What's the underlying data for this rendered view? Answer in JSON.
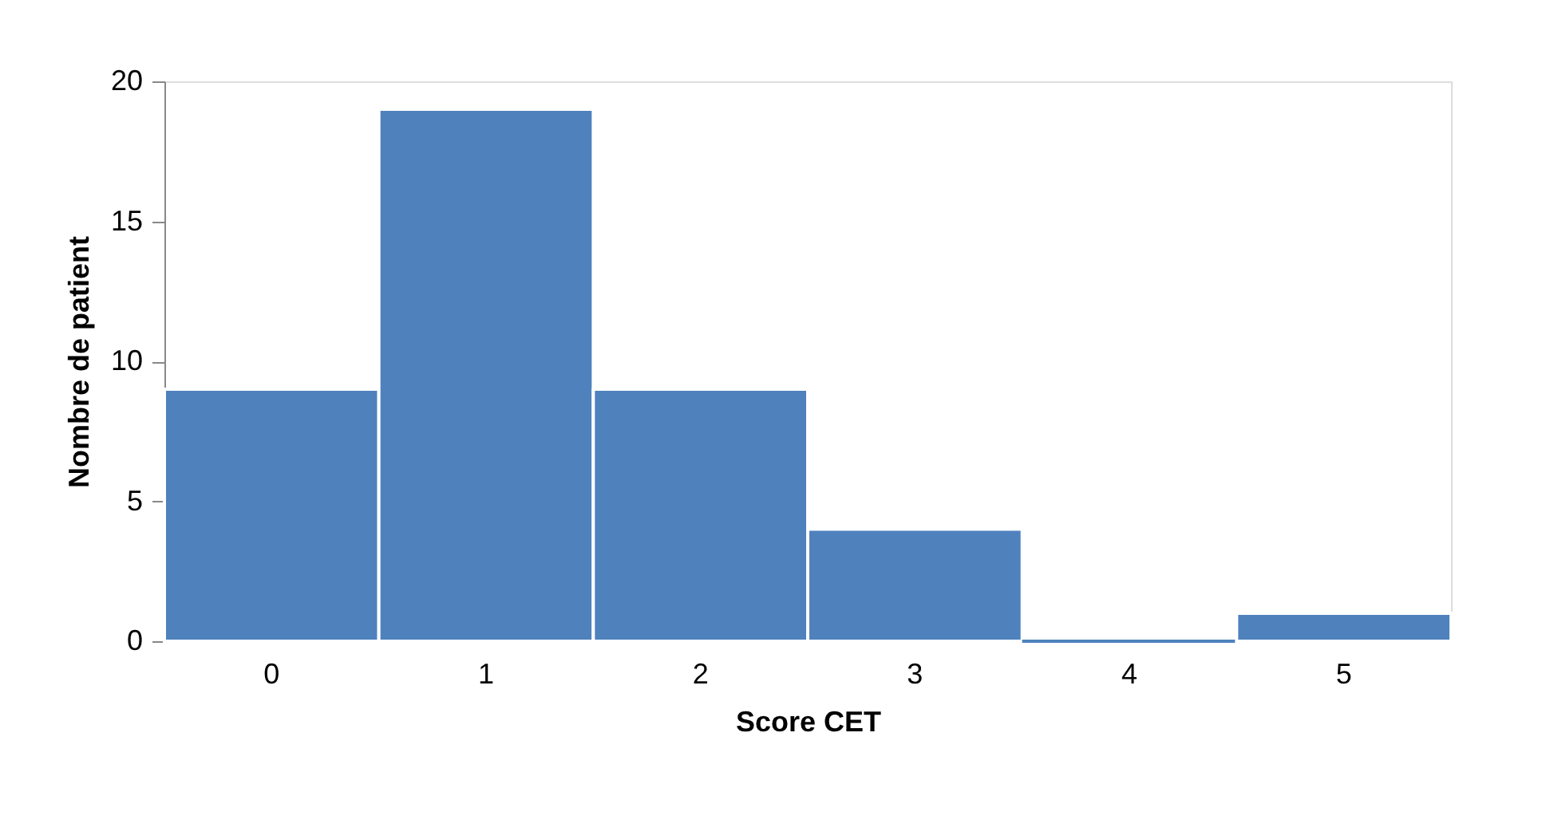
{
  "chart_data": {
    "type": "bar",
    "xlabel": "Score CET",
    "ylabel": "Nombre de patient",
    "categories": [
      "0",
      "1",
      "2",
      "3",
      "4",
      "5"
    ],
    "values": [
      9,
      19,
      9,
      4,
      0,
      1
    ],
    "color": "#4f81bd",
    "ylim": [
      0,
      20
    ],
    "yticks": [
      0,
      5,
      10,
      15,
      20
    ],
    "grid": false
  }
}
